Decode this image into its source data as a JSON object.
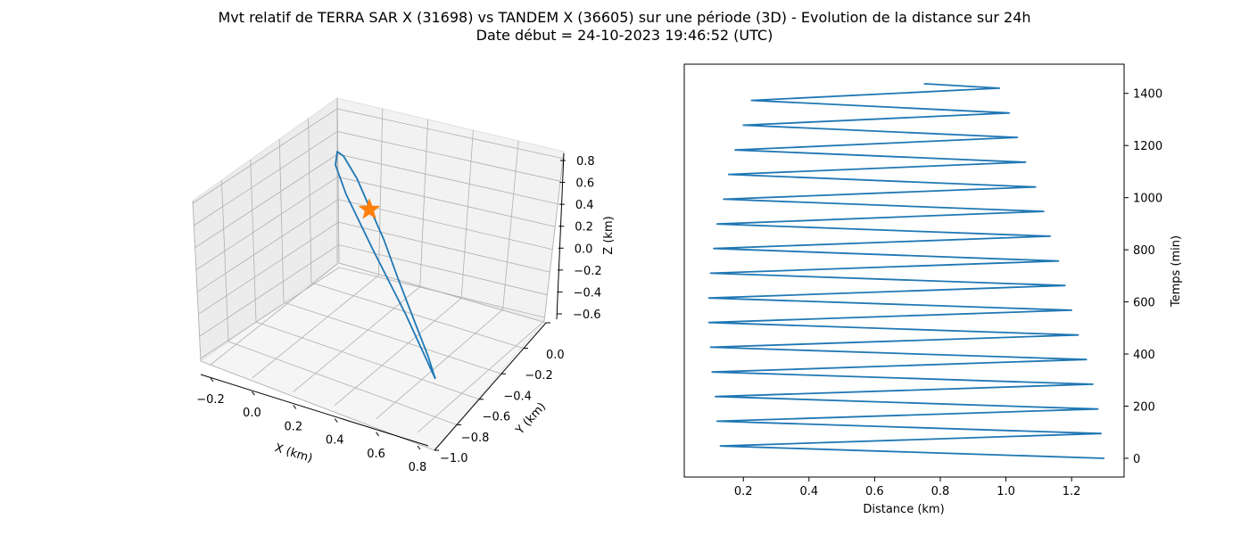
{
  "figure": {
    "title": "Mvt relatif de TERRA SAR X (31698) vs TANDEM X (36605) sur une période (3D) - Evolution de la distance sur 24h",
    "subtitle": "Date début = 24-10-2023 19:46:52 (UTC)"
  },
  "colors": {
    "line": "#1f77b4",
    "star": "#ff7f0e",
    "pane": "#f0f0f0",
    "grid": "#b0b0b0"
  },
  "chart_data": [
    {
      "type": "line3d",
      "xlabel": "X (km)",
      "ylabel": "Y (km)",
      "zlabel": "Z (km)",
      "xticks": [
        "−0.2",
        "0.0",
        "0.2",
        "0.4",
        "0.6",
        "0.8"
      ],
      "yticks": [
        "−1.0",
        "−0.8",
        "−0.6",
        "−0.4",
        "−0.2",
        "0.0"
      ],
      "zticks": [
        "−0.6",
        "−0.4",
        "−0.2",
        "0.0",
        "0.2",
        "0.4",
        "0.6",
        "0.8"
      ],
      "grid": true,
      "marker": {
        "shape": "star",
        "color": "#ff7f0e"
      }
    },
    {
      "type": "line",
      "xlabel": "Distance (km)",
      "ylabel": "Temps (min)",
      "xlim": [
        0.02,
        1.36
      ],
      "ylim": [
        -72,
        1512
      ],
      "xticks": [
        0.2,
        0.4,
        0.6,
        0.8,
        1.0,
        1.2
      ],
      "xtick_labels": [
        "0.2",
        "0.4",
        "0.6",
        "0.8",
        "1.0",
        "1.2"
      ],
      "yticks": [
        0,
        200,
        400,
        600,
        800,
        1000,
        1200,
        1400
      ],
      "ytick_labels": [
        "0",
        "200",
        "400",
        "600",
        "800",
        "1000",
        "1200",
        "1400"
      ],
      "ytick_side": "right",
      "series": [
        {
          "x": [
            1.3,
            0.13,
            1.29,
            0.12,
            1.28,
            0.115,
            1.265,
            0.105,
            1.245,
            0.1,
            1.22,
            0.095,
            1.2,
            0.095,
            1.18,
            0.1,
            1.16,
            0.11,
            1.135,
            0.12,
            1.115,
            0.14,
            1.09,
            0.155,
            1.06,
            0.175,
            1.035,
            0.2,
            1.01,
            0.225,
            0.98,
            0.75
          ],
          "y": [
            0,
            47,
            95,
            142,
            189,
            237,
            284,
            331,
            379,
            426,
            473,
            521,
            568,
            615,
            663,
            710,
            757,
            805,
            852,
            899,
            947,
            994,
            1041,
            1089,
            1136,
            1183,
            1231,
            1278,
            1325,
            1373,
            1420,
            1437
          ]
        }
      ]
    }
  ]
}
